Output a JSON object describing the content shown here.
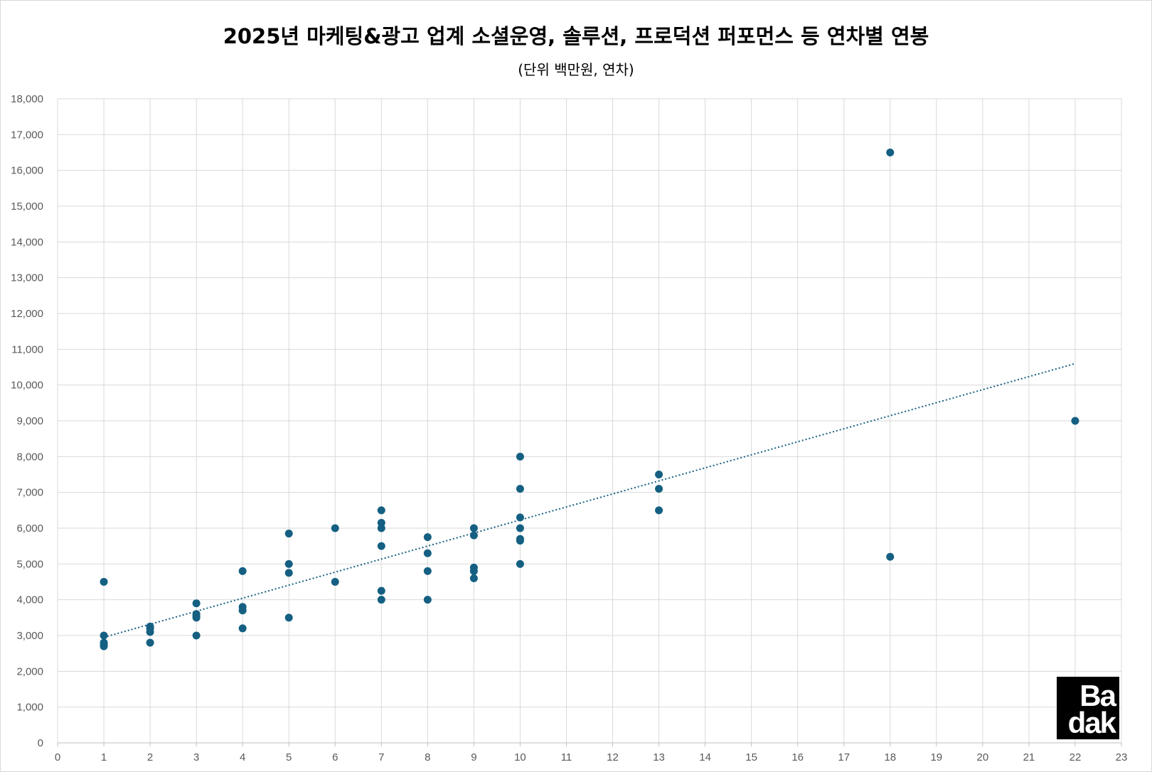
{
  "chart_data": {
    "type": "scatter",
    "title": "2025년 마케팅&광고 업계 소셜운영, 솔루션, 프로덕션 퍼포먼스 등 연차별 연봉",
    "subtitle": "(단위 백만원, 연차)",
    "xlabel": "",
    "ylabel": "",
    "xlim": [
      0,
      23
    ],
    "ylim": [
      0,
      18000
    ],
    "x_ticks": [
      0,
      1,
      2,
      3,
      4,
      5,
      6,
      7,
      8,
      9,
      10,
      11,
      12,
      13,
      14,
      15,
      16,
      17,
      18,
      19,
      20,
      21,
      22,
      23
    ],
    "y_ticks": [
      0,
      1000,
      2000,
      3000,
      4000,
      5000,
      6000,
      7000,
      8000,
      9000,
      10000,
      11000,
      12000,
      13000,
      14000,
      15000,
      16000,
      17000,
      18000
    ],
    "y_tick_labels": [
      "0",
      "1,000",
      "2,000",
      "3,000",
      "4,000",
      "5,000",
      "6,000",
      "7,000",
      "8,000",
      "9,000",
      "10,000",
      "11,000",
      "12,000",
      "13,000",
      "14,000",
      "15,000",
      "16,000",
      "17,000",
      "18,000"
    ],
    "grid": true,
    "legend": "none",
    "marker_color": "#156082",
    "trendline": {
      "type": "linear",
      "style": "dotted",
      "color": "#156082",
      "from": [
        1,
        2950
      ],
      "to": [
        22,
        10600
      ]
    },
    "points": [
      [
        1,
        4500
      ],
      [
        1,
        3000
      ],
      [
        1,
        2800
      ],
      [
        1,
        2750
      ],
      [
        1,
        2700
      ],
      [
        2,
        3250
      ],
      [
        2,
        3200
      ],
      [
        2,
        3100
      ],
      [
        2,
        2800
      ],
      [
        3,
        3900
      ],
      [
        3,
        3600
      ],
      [
        3,
        3550
      ],
      [
        3,
        3500
      ],
      [
        3,
        3000
      ],
      [
        4,
        4800
      ],
      [
        4,
        3800
      ],
      [
        4,
        3700
      ],
      [
        4,
        3200
      ],
      [
        5,
        5850
      ],
      [
        5,
        5000
      ],
      [
        5,
        4750
      ],
      [
        5,
        3500
      ],
      [
        6,
        6000
      ],
      [
        6,
        4500
      ],
      [
        7,
        6500
      ],
      [
        7,
        6150
      ],
      [
        7,
        6000
      ],
      [
        7,
        5500
      ],
      [
        7,
        4250
      ],
      [
        7,
        4000
      ],
      [
        8,
        5750
      ],
      [
        8,
        5300
      ],
      [
        8,
        4800
      ],
      [
        8,
        4000
      ],
      [
        9,
        6000
      ],
      [
        9,
        5800
      ],
      [
        9,
        4900
      ],
      [
        9,
        4800
      ],
      [
        9,
        4600
      ],
      [
        10,
        8000
      ],
      [
        10,
        7100
      ],
      [
        10,
        6300
      ],
      [
        10,
        6000
      ],
      [
        10,
        5700
      ],
      [
        10,
        5650
      ],
      [
        10,
        5000
      ],
      [
        13,
        7500
      ],
      [
        13,
        7100
      ],
      [
        13,
        6500
      ],
      [
        18,
        16500
      ],
      [
        18,
        5200
      ],
      [
        22,
        9000
      ]
    ]
  },
  "logo": {
    "line1": "Ba",
    "line2": "dak"
  }
}
